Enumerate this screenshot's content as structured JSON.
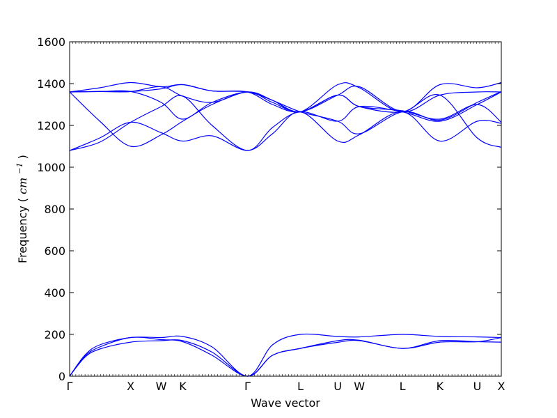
{
  "chart_data": {
    "type": "line",
    "title": "",
    "xlabel": "Wave vector",
    "ylabel": "Frequency",
    "ylabel_unit": "cm",
    "ylabel_unit_exp": "−1",
    "ylim": [
      0,
      1600
    ],
    "yticks": [
      0,
      200,
      400,
      600,
      800,
      1000,
      1200,
      1400,
      1600
    ],
    "x_ticks": [
      {
        "label": "Γ",
        "x": 0.0
      },
      {
        "label": "X",
        "x": 0.1414
      },
      {
        "label": "W",
        "x": 0.2121
      },
      {
        "label": "K",
        "x": 0.2621
      },
      {
        "label": "Γ",
        "x": 0.4121
      },
      {
        "label": "L",
        "x": 0.5346
      },
      {
        "label": "U",
        "x": 0.6212
      },
      {
        "label": "W",
        "x": 0.6712
      },
      {
        "label": "L",
        "x": 0.7712
      },
      {
        "label": "K",
        "x": 0.8578
      },
      {
        "label": "U",
        "x": 0.9443
      },
      {
        "label": "X",
        "x": 1.0
      }
    ],
    "xlim": [
      0,
      1
    ],
    "grid": false,
    "line_color": "#0000ff",
    "series": [
      {
        "x": [
          0,
          0.035,
          0.07,
          0.1414,
          0.2121,
          0.2621,
          0.33,
          0.4121,
          0.47,
          0.5346,
          0.6212,
          0.6712,
          0.7712,
          0.8578,
          0.9443,
          1.0
        ],
        "y": [
          0,
          100,
          150,
          185,
          185,
          190,
          140,
          0,
          150,
          200,
          190,
          188,
          200,
          190,
          188,
          185
        ]
      },
      {
        "x": [
          0,
          0.035,
          0.07,
          0.1414,
          0.2121,
          0.2621,
          0.33,
          0.4121,
          0.47,
          0.5346,
          0.6212,
          0.6712,
          0.7712,
          0.8578,
          0.9443,
          1.0
        ],
        "y": [
          0,
          95,
          140,
          185,
          175,
          165,
          100,
          0,
          100,
          133,
          170,
          172,
          133,
          170,
          165,
          163
        ]
      },
      {
        "x": [
          0,
          0.035,
          0.07,
          0.1414,
          0.2121,
          0.2621,
          0.33,
          0.4121,
          0.47,
          0.5346,
          0.6212,
          0.6712,
          0.7712,
          0.8578,
          0.9443,
          1.0
        ],
        "y": [
          0,
          90,
          130,
          163,
          170,
          170,
          115,
          0,
          100,
          133,
          162,
          170,
          133,
          163,
          165,
          185
        ]
      },
      {
        "x": [
          0,
          0.07,
          0.1414,
          0.2121,
          0.2621,
          0.33,
          0.4121,
          0.47,
          0.5346,
          0.6212,
          0.6712,
          0.7712,
          0.8578,
          0.9443,
          1.0
        ],
        "y": [
          1080,
          1140,
          1215,
          1165,
          1125,
          1150,
          1080,
          1160,
          1265,
          1125,
          1155,
          1265,
          1125,
          1220,
          1210
        ]
      },
      {
        "x": [
          0,
          0.07,
          0.1414,
          0.2121,
          0.2621,
          0.33,
          0.4121,
          0.47,
          0.5346,
          0.6212,
          0.6712,
          0.7712,
          0.8578,
          0.9443,
          1.0
        ],
        "y": [
          1080,
          1120,
          1215,
          1290,
          1340,
          1200,
          1080,
          1190,
          1265,
          1220,
          1290,
          1265,
          1220,
          1300,
          1360
        ]
      },
      {
        "x": [
          0,
          0.07,
          0.1414,
          0.2121,
          0.2621,
          0.33,
          0.4121,
          0.47,
          0.5346,
          0.6212,
          0.6712,
          0.7712,
          0.8578,
          0.9443,
          1.0
        ],
        "y": [
          1360,
          1220,
          1100,
          1155,
          1220,
          1300,
          1360,
          1320,
          1265,
          1345,
          1290,
          1265,
          1345,
          1140,
          1095
        ]
      },
      {
        "x": [
          0,
          0.07,
          0.1414,
          0.2121,
          0.2621,
          0.33,
          0.4121,
          0.47,
          0.5346,
          0.6212,
          0.6712,
          0.7712,
          0.8578,
          0.9443,
          1.0
        ],
        "y": [
          1360,
          1362,
          1362,
          1310,
          1230,
          1310,
          1360,
          1320,
          1265,
          1220,
          1160,
          1265,
          1225,
          1310,
          1362
        ]
      },
      {
        "x": [
          0,
          0.07,
          0.1414,
          0.2121,
          0.2621,
          0.33,
          0.4121,
          0.47,
          0.5346,
          0.6212,
          0.6712,
          0.7712,
          0.8578,
          0.9443,
          1.0
        ],
        "y": [
          1360,
          1362,
          1362,
          1385,
          1340,
          1310,
          1360,
          1310,
          1265,
          1345,
          1385,
          1265,
          1345,
          1360,
          1360
        ]
      },
      {
        "x": [
          0,
          0.07,
          0.1414,
          0.2121,
          0.2621,
          0.33,
          0.4121,
          0.47,
          0.5346,
          0.6212,
          0.6712,
          0.7712,
          0.8578,
          0.9443,
          1.0
        ],
        "y": [
          1360,
          1380,
          1405,
          1385,
          1395,
          1365,
          1360,
          1320,
          1265,
          1395,
          1380,
          1265,
          1395,
          1380,
          1405
        ]
      },
      {
        "x": [
          0,
          0.07,
          0.1414,
          0.2121,
          0.2621,
          0.33,
          0.4121,
          0.47,
          0.5346,
          0.6212,
          0.6712,
          0.7712,
          0.8578,
          0.9443,
          1.0
        ],
        "y": [
          1360,
          1362,
          1362,
          1375,
          1395,
          1365,
          1360,
          1300,
          1265,
          1345,
          1290,
          1270,
          1230,
          1300,
          1215
        ]
      }
    ]
  }
}
